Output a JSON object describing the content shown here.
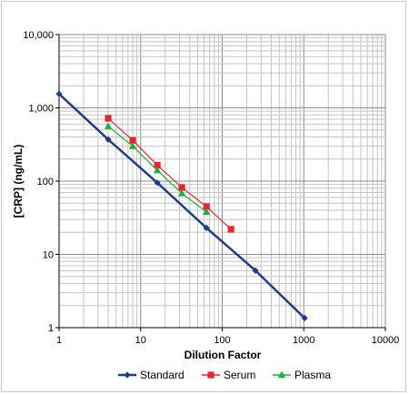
{
  "chart_data": {
    "type": "line",
    "title": "",
    "xlabel": "Dilution Factor",
    "ylabel": "[CRP] (ng/mL)",
    "x_scale": "log",
    "y_scale": "log",
    "xlim": [
      1,
      10000
    ],
    "ylim": [
      1,
      10000
    ],
    "x_ticks": [
      "1",
      "10",
      "100",
      "1000",
      "10000"
    ],
    "y_ticks": [
      "1",
      "10",
      "100",
      "1,000",
      "10,000"
    ],
    "grid": true,
    "legend_position": "bottom",
    "series": [
      {
        "name": "Standard",
        "color": "#1f3c88",
        "marker": "diamond",
        "points": [
          [
            1,
            1550
          ],
          [
            4,
            370
          ],
          [
            16,
            95
          ],
          [
            64,
            23
          ],
          [
            256,
            6
          ],
          [
            1024,
            1.35
          ]
        ]
      },
      {
        "name": "Serum",
        "color": "#e8262b",
        "marker": "square",
        "points": [
          [
            4,
            720
          ],
          [
            8,
            360
          ],
          [
            16,
            165
          ],
          [
            32,
            82
          ],
          [
            64,
            45
          ],
          [
            128,
            22
          ]
        ]
      },
      {
        "name": "Plasma",
        "color": "#19b038",
        "marker": "triangle",
        "points": [
          [
            4,
            560
          ],
          [
            8,
            300
          ],
          [
            16,
            140
          ],
          [
            32,
            68
          ],
          [
            64,
            38
          ]
        ]
      }
    ]
  }
}
